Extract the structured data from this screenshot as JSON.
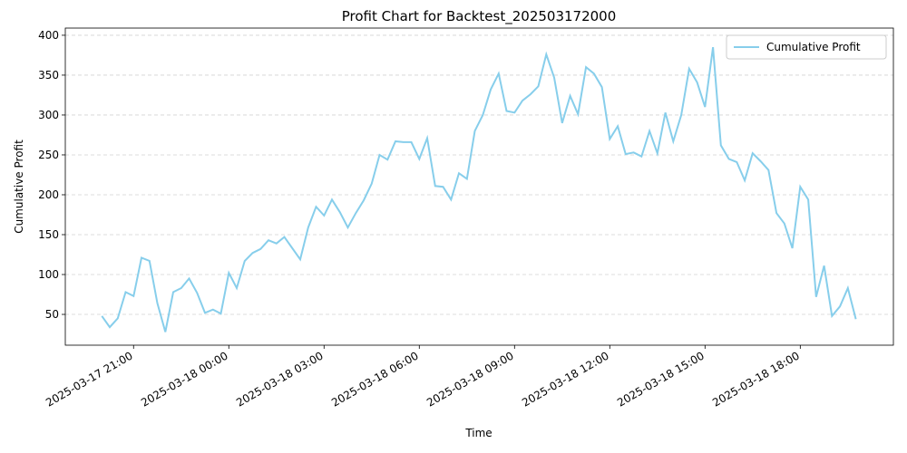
{
  "chart_data": {
    "type": "line",
    "title": "Profit Chart for Backtest_202503172000",
    "x_label": "Time",
    "y_label": "Cumulative Profit",
    "x": [
      "2025-03-17 20:00",
      "2025-03-17 20:15",
      "2025-03-17 20:30",
      "2025-03-17 20:45",
      "2025-03-17 21:00",
      "2025-03-17 21:15",
      "2025-03-17 21:30",
      "2025-03-17 21:45",
      "2025-03-17 22:00",
      "2025-03-17 22:15",
      "2025-03-17 22:30",
      "2025-03-17 22:45",
      "2025-03-17 23:00",
      "2025-03-17 23:15",
      "2025-03-17 23:30",
      "2025-03-17 23:45",
      "2025-03-18 00:00",
      "2025-03-18 00:15",
      "2025-03-18 00:30",
      "2025-03-18 00:45",
      "2025-03-18 01:00",
      "2025-03-18 01:15",
      "2025-03-18 01:30",
      "2025-03-18 01:45",
      "2025-03-18 02:00",
      "2025-03-18 02:15",
      "2025-03-18 02:30",
      "2025-03-18 02:45",
      "2025-03-18 03:00",
      "2025-03-18 03:15",
      "2025-03-18 03:30",
      "2025-03-18 03:45",
      "2025-03-18 04:00",
      "2025-03-18 04:15",
      "2025-03-18 04:30",
      "2025-03-18 04:45",
      "2025-03-18 05:00",
      "2025-03-18 05:15",
      "2025-03-18 05:30",
      "2025-03-18 05:45",
      "2025-03-18 06:00",
      "2025-03-18 06:15",
      "2025-03-18 06:30",
      "2025-03-18 06:45",
      "2025-03-18 07:00",
      "2025-03-18 07:15",
      "2025-03-18 07:30",
      "2025-03-18 07:45",
      "2025-03-18 08:00",
      "2025-03-18 08:15",
      "2025-03-18 08:30",
      "2025-03-18 08:45",
      "2025-03-18 09:00",
      "2025-03-18 09:15",
      "2025-03-18 09:30",
      "2025-03-18 09:45",
      "2025-03-18 10:00",
      "2025-03-18 10:15",
      "2025-03-18 10:30",
      "2025-03-18 10:45",
      "2025-03-18 11:00",
      "2025-03-18 11:15",
      "2025-03-18 11:30",
      "2025-03-18 11:45",
      "2025-03-18 12:00",
      "2025-03-18 12:15",
      "2025-03-18 12:30",
      "2025-03-18 12:45",
      "2025-03-18 13:00",
      "2025-03-18 13:15",
      "2025-03-18 13:30",
      "2025-03-18 13:45",
      "2025-03-18 14:00",
      "2025-03-18 14:15",
      "2025-03-18 14:30",
      "2025-03-18 14:45",
      "2025-03-18 15:00",
      "2025-03-18 15:15",
      "2025-03-18 15:30",
      "2025-03-18 15:45",
      "2025-03-18 16:00",
      "2025-03-18 16:15",
      "2025-03-18 16:30",
      "2025-03-18 16:45",
      "2025-03-18 17:00",
      "2025-03-18 17:15",
      "2025-03-18 17:30",
      "2025-03-18 17:45",
      "2025-03-18 18:00",
      "2025-03-18 18:15",
      "2025-03-18 18:30",
      "2025-03-18 18:45",
      "2025-03-18 19:00",
      "2025-03-18 19:15",
      "2025-03-18 19:30",
      "2025-03-18 19:45"
    ],
    "series": [
      {
        "name": "Cumulative Profit",
        "color": "#87ceeb",
        "values": [
          48,
          34,
          45,
          78,
          73,
          121,
          117,
          64,
          28,
          78,
          83,
          95,
          77,
          52,
          56,
          51,
          102,
          83,
          117,
          127,
          132,
          143,
          139,
          147,
          133,
          119,
          159,
          185,
          174,
          194,
          178,
          159,
          177,
          193,
          214,
          250,
          244,
          267,
          266,
          266,
          245,
          271,
          211,
          210,
          194,
          227,
          220,
          280,
          300,
          332,
          352,
          305,
          303,
          318,
          326,
          336,
          376,
          347,
          290,
          324,
          301,
          360,
          352,
          335,
          270,
          286,
          251,
          253,
          248,
          280,
          252,
          303,
          267,
          300,
          358,
          341,
          310,
          385,
          262,
          245,
          241,
          218,
          252,
          242,
          231,
          177,
          164,
          133,
          210,
          194,
          72,
          111,
          48,
          60,
          83,
          44
        ]
      }
    ],
    "xlim": [
      "2025-03-17 18:51",
      "2025-03-18 20:56"
    ],
    "xticks": [
      "2025-03-17 21:00",
      "2025-03-18 00:00",
      "2025-03-18 03:00",
      "2025-03-18 06:00",
      "2025-03-18 09:00",
      "2025-03-18 12:00",
      "2025-03-18 15:00",
      "2025-03-18 18:00"
    ],
    "ylim": [
      11.4,
      409
    ],
    "yticks": [
      50,
      100,
      150,
      200,
      250,
      300,
      350,
      400
    ],
    "grid": true,
    "legend": "upper right"
  }
}
